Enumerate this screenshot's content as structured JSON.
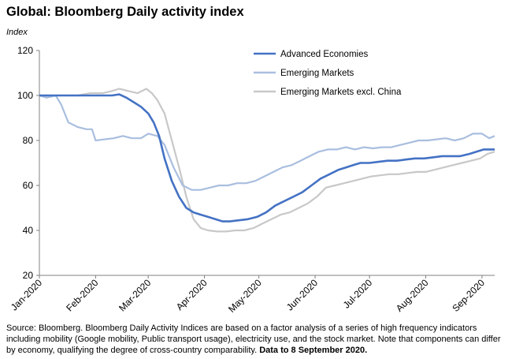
{
  "title": "Global: Bloomberg Daily activity index",
  "source_text": "Source: Bloomberg.   Bloomberg Daily Activity Indices are based on a factor analysis of a series of high frequency indicators including mobility (Google mobility, Public transport usage), electricity use, and the stock market.  Note that components can differ by economy, qualifying the degree of cross-country comparability. ",
  "source_bold": "Data to 8 September 2020.",
  "colors": {
    "advanced": "#4472C4",
    "emerging": "#A9BEDF",
    "emerging_ex_china": "#C8C8C8",
    "axis": "#808080"
  },
  "chart_data": {
    "type": "line",
    "ylabel": "Index",
    "xlabel": "",
    "ylim": [
      20,
      120
    ],
    "yticks": [
      20,
      40,
      60,
      80,
      100,
      120
    ],
    "x_date_range": [
      "2020-01-01",
      "2020-09-08"
    ],
    "xtick_dates": [
      "2020-01-01",
      "2020-02-01",
      "2020-03-01",
      "2020-04-01",
      "2020-05-01",
      "2020-06-01",
      "2020-07-01",
      "2020-08-01",
      "2020-09-01"
    ],
    "xtick_labels": [
      "Jan-2020",
      "Feb-2020",
      "Mar-2020",
      "Apr-2020",
      "May-2020",
      "Jun-2020",
      "Jul-2020",
      "Aug-2020",
      "Sep-2020"
    ],
    "grid": false,
    "legend_position": "top-right",
    "series": [
      {
        "name": "Advanced Economies",
        "points": [
          [
            "2020-01-01",
            100
          ],
          [
            "2020-01-08",
            100
          ],
          [
            "2020-01-15",
            100
          ],
          [
            "2020-01-22",
            100
          ],
          [
            "2020-01-29",
            100
          ],
          [
            "2020-02-05",
            100
          ],
          [
            "2020-02-10",
            100
          ],
          [
            "2020-02-14",
            100.5
          ],
          [
            "2020-02-18",
            99
          ],
          [
            "2020-02-22",
            97
          ],
          [
            "2020-02-26",
            95
          ],
          [
            "2020-03-01",
            92
          ],
          [
            "2020-03-04",
            88
          ],
          [
            "2020-03-07",
            82
          ],
          [
            "2020-03-10",
            72
          ],
          [
            "2020-03-14",
            62
          ],
          [
            "2020-03-18",
            55
          ],
          [
            "2020-03-22",
            50
          ],
          [
            "2020-03-26",
            48
          ],
          [
            "2020-03-30",
            47
          ],
          [
            "2020-04-03",
            46
          ],
          [
            "2020-04-07",
            45
          ],
          [
            "2020-04-11",
            44
          ],
          [
            "2020-04-15",
            44
          ],
          [
            "2020-04-20",
            44.5
          ],
          [
            "2020-04-25",
            45
          ],
          [
            "2020-04-30",
            46
          ],
          [
            "2020-05-05",
            48
          ],
          [
            "2020-05-10",
            51
          ],
          [
            "2020-05-15",
            53
          ],
          [
            "2020-05-20",
            55
          ],
          [
            "2020-05-25",
            57
          ],
          [
            "2020-05-30",
            60
          ],
          [
            "2020-06-04",
            63
          ],
          [
            "2020-06-09",
            65
          ],
          [
            "2020-06-14",
            67
          ],
          [
            "2020-06-18",
            68
          ],
          [
            "2020-06-22",
            69
          ],
          [
            "2020-06-26",
            70
          ],
          [
            "2020-07-01",
            70
          ],
          [
            "2020-07-06",
            70.5
          ],
          [
            "2020-07-11",
            71
          ],
          [
            "2020-07-16",
            71
          ],
          [
            "2020-07-21",
            71.5
          ],
          [
            "2020-07-26",
            72
          ],
          [
            "2020-07-31",
            72
          ],
          [
            "2020-08-05",
            72.5
          ],
          [
            "2020-08-10",
            73
          ],
          [
            "2020-08-15",
            73
          ],
          [
            "2020-08-20",
            73
          ],
          [
            "2020-08-25",
            74
          ],
          [
            "2020-08-29",
            75
          ],
          [
            "2020-09-02",
            76
          ],
          [
            "2020-09-08",
            76
          ]
        ]
      },
      {
        "name": "Emerging Markets",
        "points": [
          [
            "2020-01-01",
            100
          ],
          [
            "2020-01-05",
            99
          ],
          [
            "2020-01-10",
            100
          ],
          [
            "2020-01-13",
            96
          ],
          [
            "2020-01-17",
            88
          ],
          [
            "2020-01-22",
            86
          ],
          [
            "2020-01-27",
            85
          ],
          [
            "2020-01-30",
            85
          ],
          [
            "2020-02-01",
            80
          ],
          [
            "2020-02-06",
            80.5
          ],
          [
            "2020-02-11",
            81
          ],
          [
            "2020-02-16",
            82
          ],
          [
            "2020-02-21",
            81
          ],
          [
            "2020-02-26",
            81
          ],
          [
            "2020-03-01",
            83
          ],
          [
            "2020-03-06",
            82
          ],
          [
            "2020-03-10",
            78
          ],
          [
            "2020-03-15",
            68
          ],
          [
            "2020-03-20",
            60
          ],
          [
            "2020-03-25",
            58
          ],
          [
            "2020-03-30",
            58
          ],
          [
            "2020-04-04",
            59
          ],
          [
            "2020-04-09",
            60
          ],
          [
            "2020-04-14",
            60
          ],
          [
            "2020-04-19",
            61
          ],
          [
            "2020-04-24",
            61
          ],
          [
            "2020-04-29",
            62
          ],
          [
            "2020-05-04",
            64
          ],
          [
            "2020-05-09",
            66
          ],
          [
            "2020-05-14",
            68
          ],
          [
            "2020-05-19",
            69
          ],
          [
            "2020-05-24",
            71
          ],
          [
            "2020-05-29",
            73
          ],
          [
            "2020-06-03",
            75
          ],
          [
            "2020-06-08",
            76
          ],
          [
            "2020-06-13",
            76
          ],
          [
            "2020-06-18",
            77
          ],
          [
            "2020-06-23",
            76
          ],
          [
            "2020-06-28",
            77
          ],
          [
            "2020-07-03",
            76.5
          ],
          [
            "2020-07-08",
            77
          ],
          [
            "2020-07-13",
            77
          ],
          [
            "2020-07-18",
            78
          ],
          [
            "2020-07-23",
            79
          ],
          [
            "2020-07-28",
            80
          ],
          [
            "2020-08-02",
            80
          ],
          [
            "2020-08-07",
            80.5
          ],
          [
            "2020-08-12",
            81
          ],
          [
            "2020-08-17",
            80
          ],
          [
            "2020-08-22",
            81
          ],
          [
            "2020-08-27",
            83
          ],
          [
            "2020-09-01",
            83
          ],
          [
            "2020-09-05",
            81
          ],
          [
            "2020-09-08",
            82
          ]
        ]
      },
      {
        "name": "Emerging Markets excl. China",
        "points": [
          [
            "2020-01-01",
            100
          ],
          [
            "2020-01-08",
            100
          ],
          [
            "2020-01-15",
            100
          ],
          [
            "2020-01-22",
            100
          ],
          [
            "2020-01-29",
            101
          ],
          [
            "2020-02-05",
            101
          ],
          [
            "2020-02-10",
            102
          ],
          [
            "2020-02-14",
            103
          ],
          [
            "2020-02-19",
            102
          ],
          [
            "2020-02-24",
            101
          ],
          [
            "2020-02-29",
            103
          ],
          [
            "2020-03-03",
            101
          ],
          [
            "2020-03-06",
            98
          ],
          [
            "2020-03-10",
            92
          ],
          [
            "2020-03-14",
            80
          ],
          [
            "2020-03-18",
            68
          ],
          [
            "2020-03-22",
            55
          ],
          [
            "2020-03-26",
            45
          ],
          [
            "2020-03-30",
            41
          ],
          [
            "2020-04-03",
            40
          ],
          [
            "2020-04-08",
            39.5
          ],
          [
            "2020-04-13",
            39.5
          ],
          [
            "2020-04-18",
            40
          ],
          [
            "2020-04-23",
            40
          ],
          [
            "2020-04-28",
            41
          ],
          [
            "2020-05-03",
            43
          ],
          [
            "2020-05-08",
            45
          ],
          [
            "2020-05-13",
            47
          ],
          [
            "2020-05-18",
            48
          ],
          [
            "2020-05-23",
            50
          ],
          [
            "2020-05-28",
            52
          ],
          [
            "2020-06-02",
            55
          ],
          [
            "2020-06-07",
            59
          ],
          [
            "2020-06-12",
            60
          ],
          [
            "2020-06-17",
            61
          ],
          [
            "2020-06-22",
            62
          ],
          [
            "2020-06-27",
            63
          ],
          [
            "2020-07-02",
            64
          ],
          [
            "2020-07-07",
            64.5
          ],
          [
            "2020-07-12",
            65
          ],
          [
            "2020-07-17",
            65
          ],
          [
            "2020-07-22",
            65.5
          ],
          [
            "2020-07-27",
            66
          ],
          [
            "2020-08-01",
            66
          ],
          [
            "2020-08-06",
            67
          ],
          [
            "2020-08-11",
            68
          ],
          [
            "2020-08-16",
            69
          ],
          [
            "2020-08-21",
            70
          ],
          [
            "2020-08-26",
            71
          ],
          [
            "2020-08-31",
            72
          ],
          [
            "2020-09-04",
            74
          ],
          [
            "2020-09-08",
            75
          ]
        ]
      }
    ]
  }
}
